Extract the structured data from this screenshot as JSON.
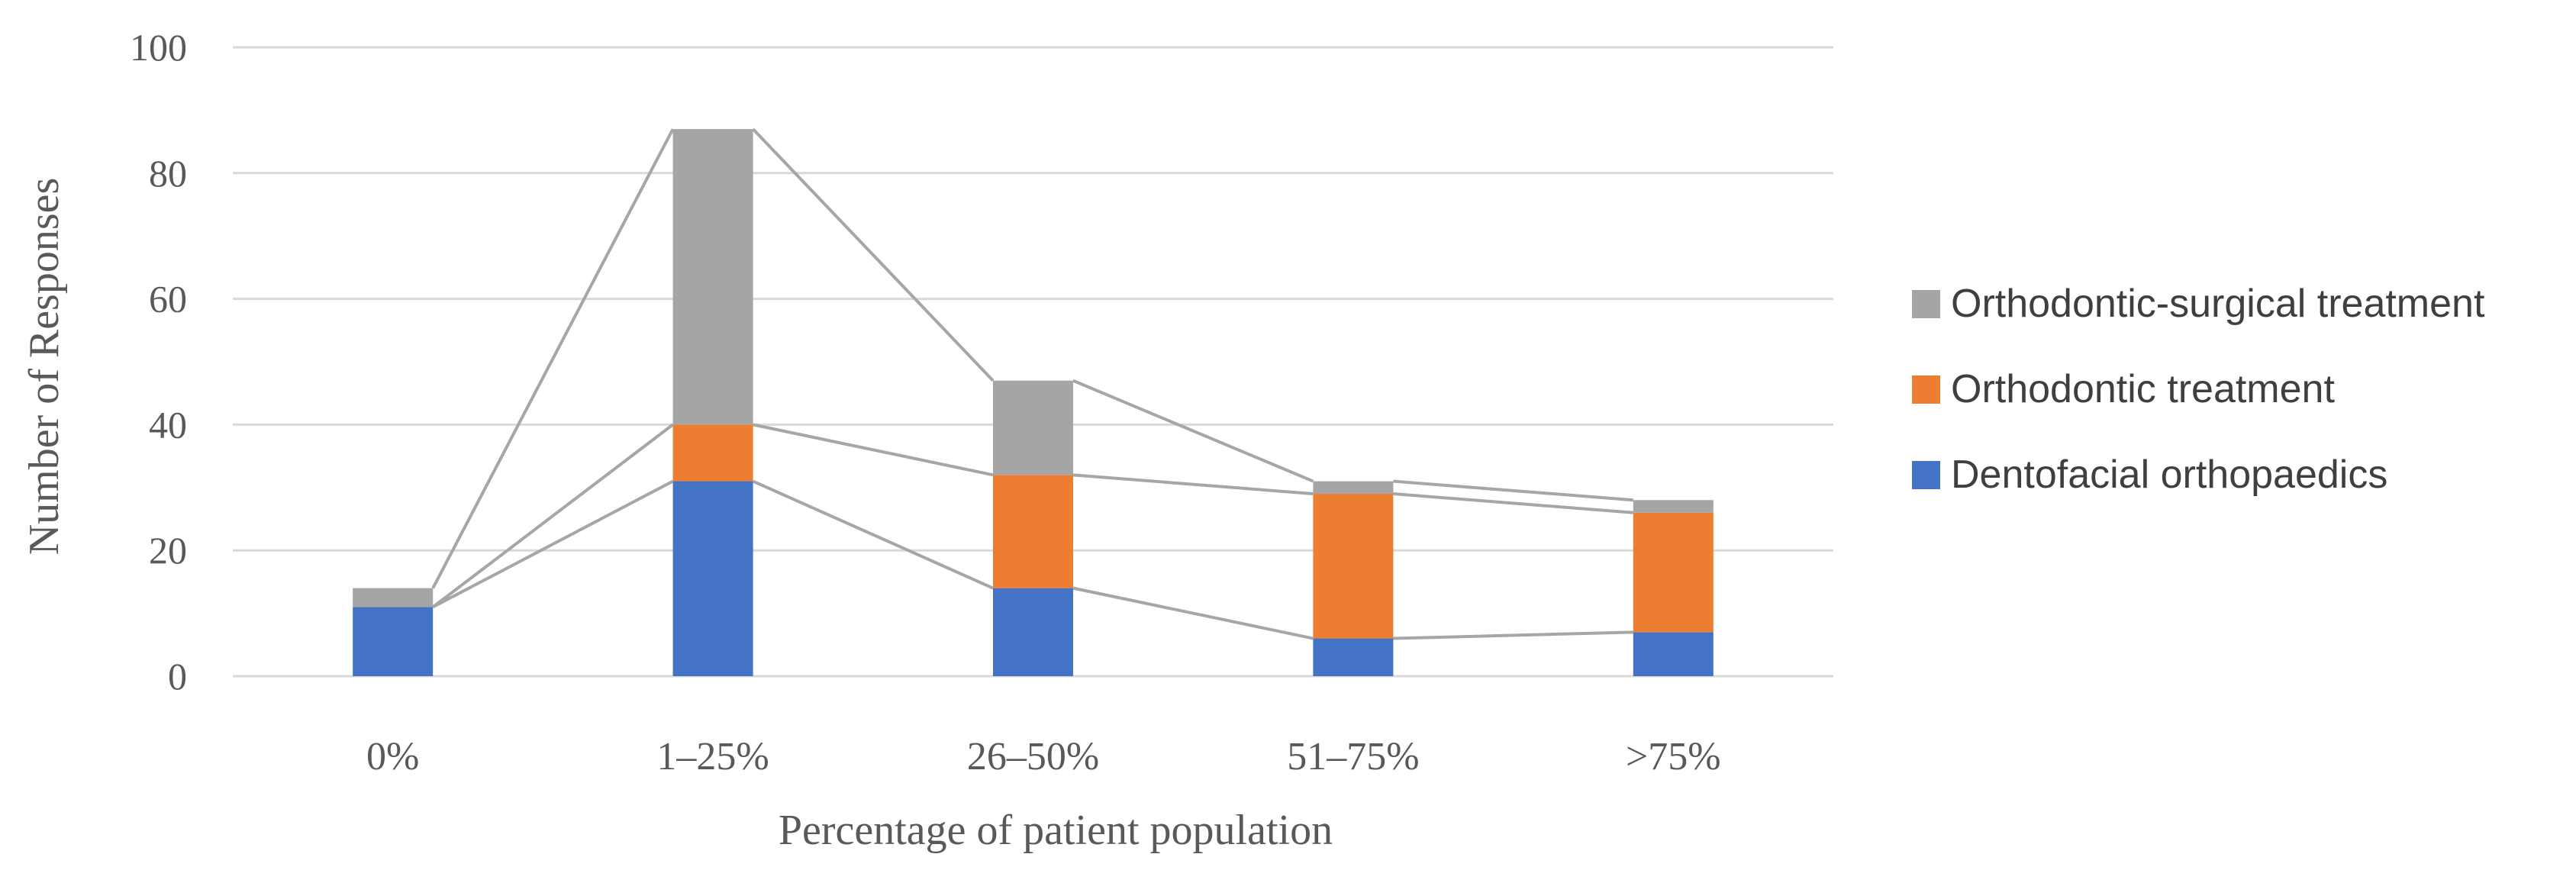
{
  "chart_data": {
    "type": "bar",
    "subtype": "stacked-vertical-with-series-lines",
    "title": "",
    "categories": [
      "0%",
      "1–25%",
      "26–50%",
      "51–75%",
      ">75%"
    ],
    "series": [
      {
        "name": "Dentofacial orthopaedics",
        "color": "#4472C4",
        "values": [
          11,
          31,
          14,
          6,
          7
        ]
      },
      {
        "name": "Orthodontic treatment",
        "color": "#ED7D31",
        "values": [
          0,
          9,
          18,
          23,
          19
        ]
      },
      {
        "name": "Orthodontic-surgical treatment",
        "color": "#A5A5A5",
        "values": [
          3,
          47,
          15,
          2,
          2
        ]
      }
    ],
    "stacked_totals": [
      14,
      87,
      47,
      31,
      28
    ],
    "xlabel": "Percentage of patient population",
    "ylabel": "Number of Responses",
    "ylim": [
      0,
      100
    ],
    "yticks": [
      0,
      20,
      40,
      60,
      80,
      100
    ],
    "grid": true,
    "legend_position": "right",
    "legend_order_top_to_bottom": [
      2,
      1,
      0
    ],
    "colors": {
      "gridline": "#D9D9D9",
      "series_line": "#A6A6A6",
      "axis_text": "#595959",
      "legend_text": "#3F3F3F"
    }
  }
}
